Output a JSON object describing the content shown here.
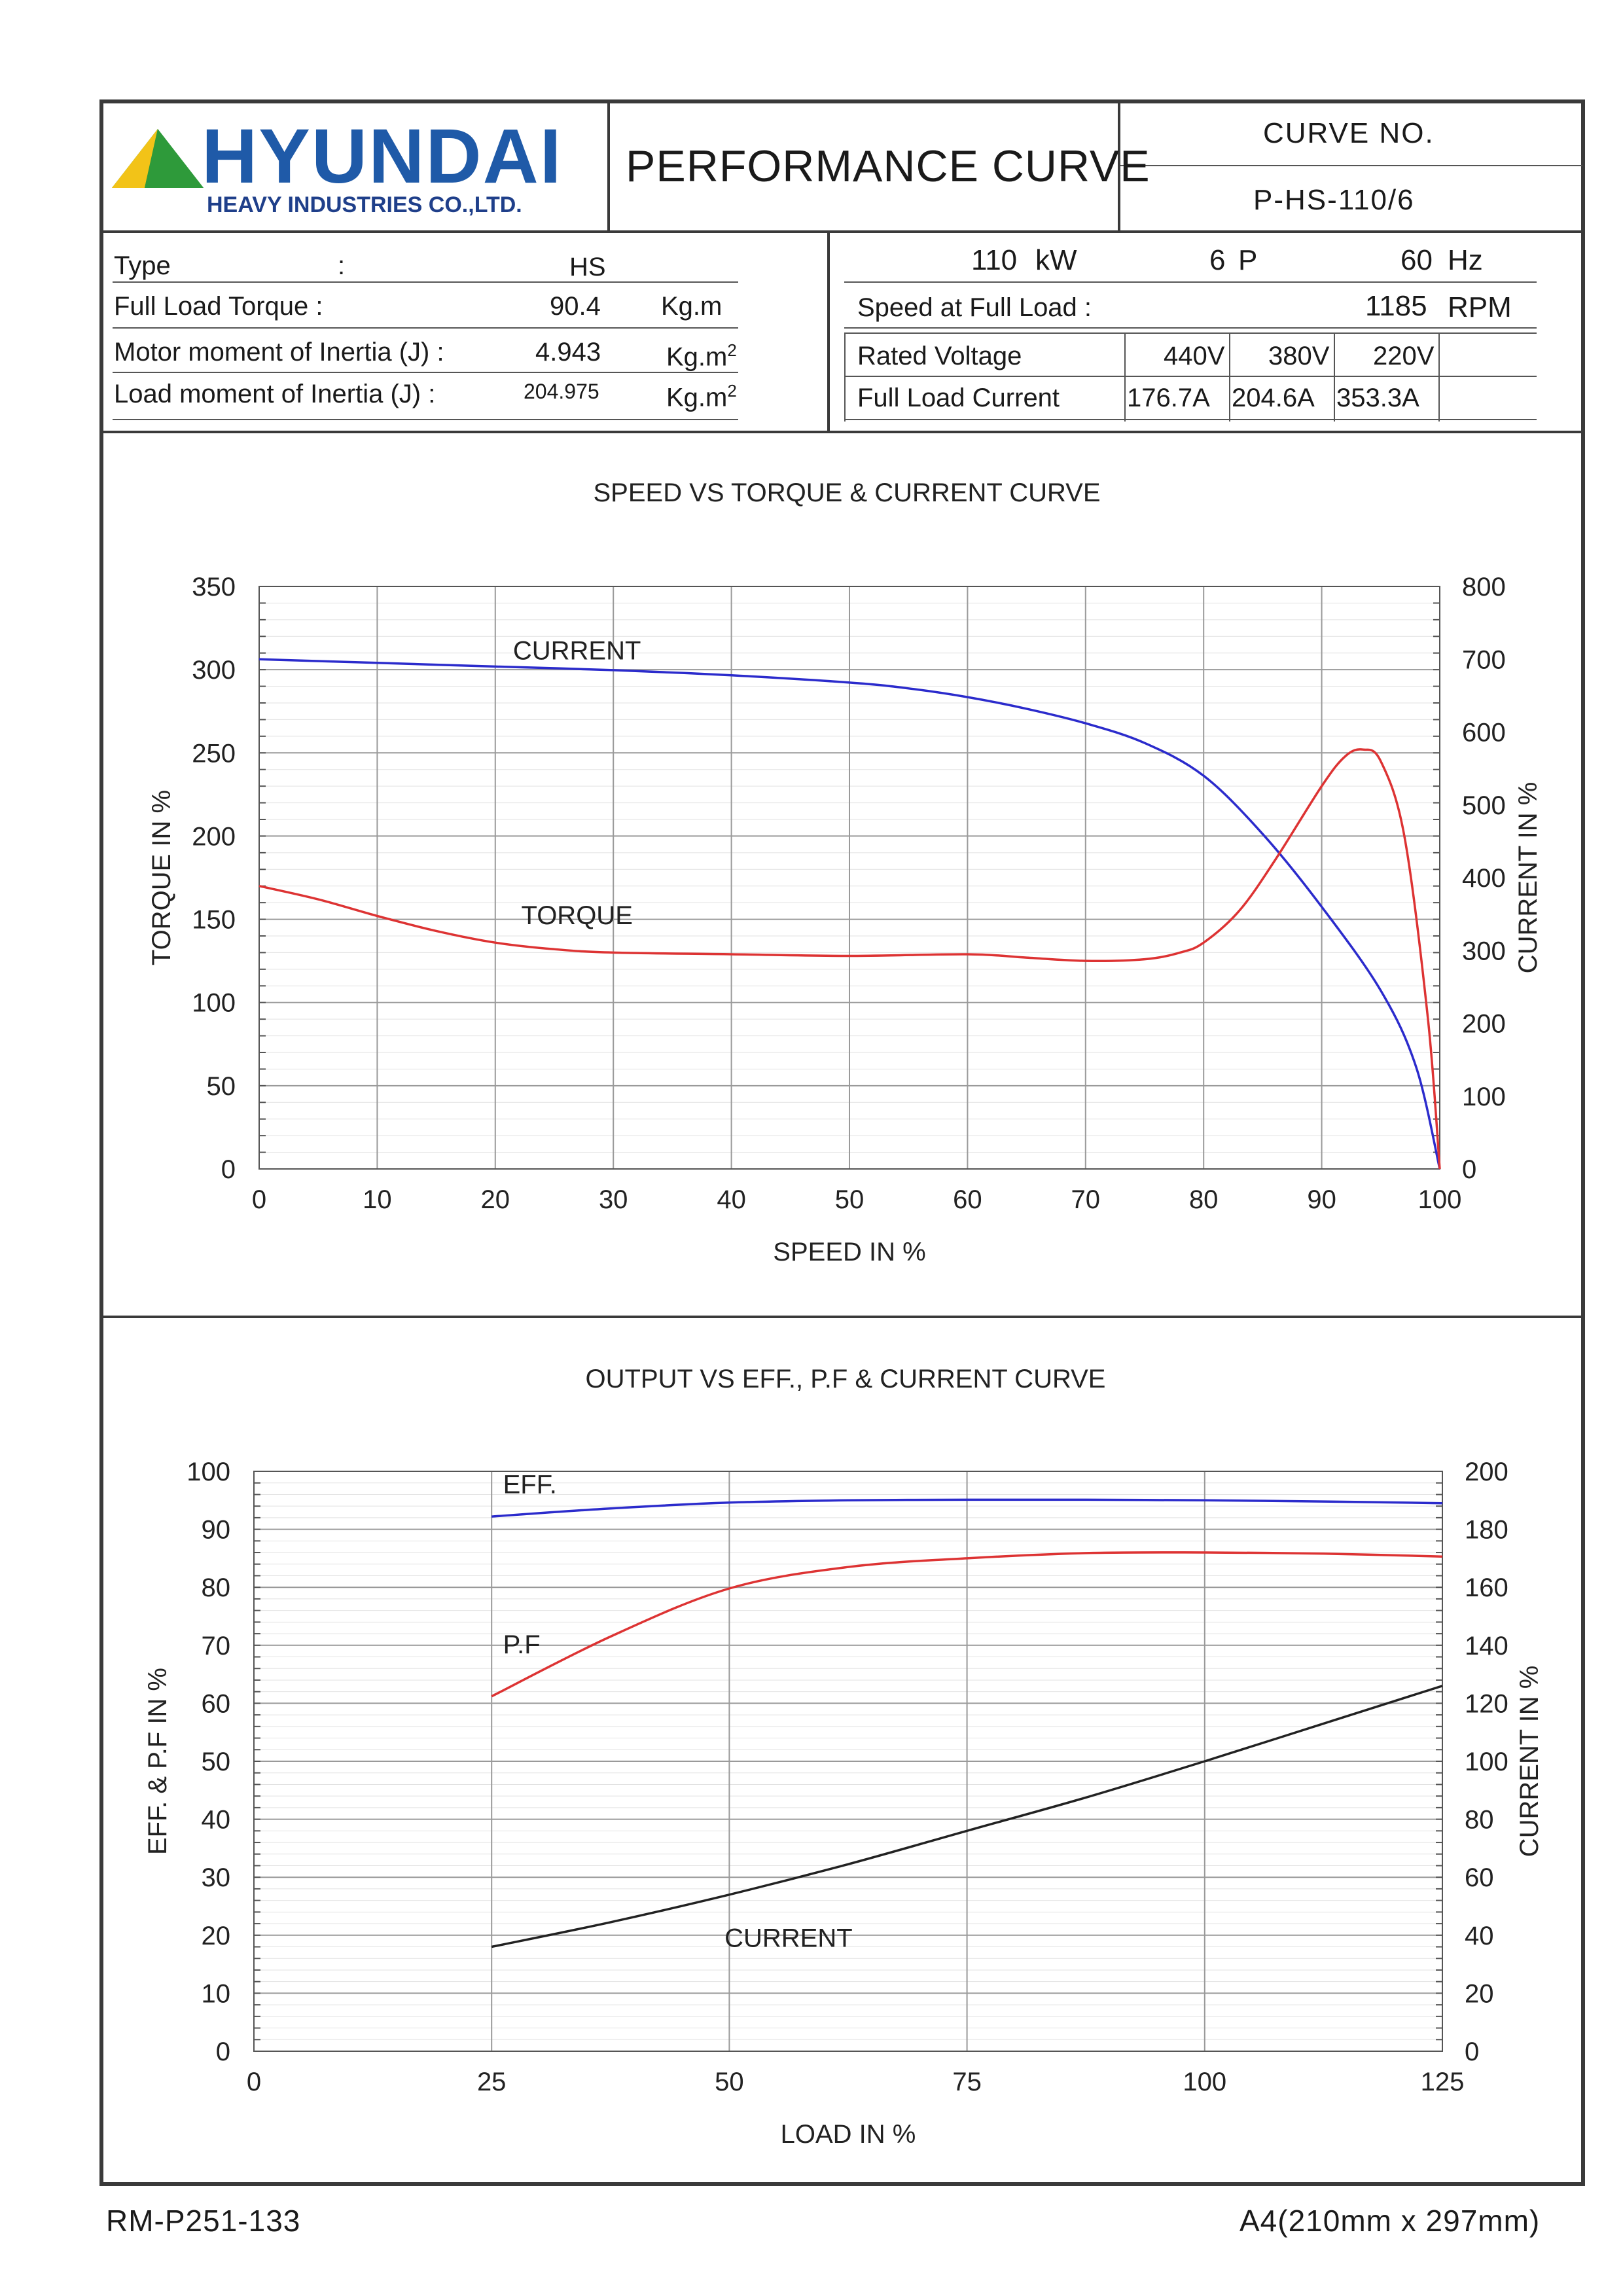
{
  "header": {
    "brand": "HYUNDAI",
    "brand_sub": "HEAVY INDUSTRIES CO.,LTD.",
    "title": "PERFORMANCE CURVE",
    "curve_no_label": "CURVE NO.",
    "curve_no": "P-HS-110/6"
  },
  "specs": {
    "type_label": "Type",
    "type_colon": ":",
    "type_value": "HS",
    "torque_label": "Full Load Torque :",
    "torque_value": "90.4",
    "torque_unit": "Kg.m",
    "motor_inertia_label": "Motor moment of Inertia (J) :",
    "motor_inertia_value": "4.943",
    "motor_inertia_unit": "Kg.m",
    "load_inertia_label": "Load moment of Inertia (J) :",
    "load_inertia_value": "204.975",
    "load_inertia_unit": "Kg.m",
    "unit_sup": "2",
    "power_value": "110",
    "power_unit": "kW",
    "poles_value": "6",
    "poles_unit": "P",
    "freq_value": "60",
    "freq_unit": "Hz",
    "speed_label": "Speed at Full Load :",
    "speed_value": "1185",
    "speed_unit": "RPM",
    "voltage_label": "Rated Voltage",
    "current_label": "Full Load Current",
    "voltages": [
      "440V",
      "380V",
      "220V"
    ],
    "currents": [
      "176.7A",
      "204.6A",
      "353.3A"
    ]
  },
  "footer": {
    "left": "RM-P251-133",
    "right": "A4(210mm x 297mm)"
  },
  "chart_data": [
    {
      "type": "line",
      "title": "SPEED VS TORQUE & CURRENT CURVE",
      "xlabel": "SPEED IN %",
      "ylabel": "TORQUE IN %",
      "y2label": "CURRENT IN %",
      "xlim": [
        0,
        100
      ],
      "ylim": [
        0,
        350
      ],
      "y2lim": [
        0,
        800
      ],
      "xticks": [
        "0",
        "10",
        "20",
        "30",
        "40",
        "50",
        "60",
        "70",
        "80",
        "90",
        "100"
      ],
      "yticks": [
        "0",
        "50",
        "100",
        "150",
        "200",
        "250",
        "300",
        "350"
      ],
      "y2ticks": [
        "0",
        "100",
        "200",
        "300",
        "400",
        "500",
        "600",
        "700",
        "800"
      ],
      "grid": true,
      "series": [
        {
          "name": "CURRENT",
          "axis": "right",
          "color": "#2b2bcc",
          "x": [
            0,
            10,
            20,
            30,
            40,
            50,
            55,
            60,
            65,
            70,
            75,
            80,
            85,
            90,
            95,
            98,
            100
          ],
          "y": [
            700,
            695,
            690,
            685,
            678,
            668,
            660,
            648,
            632,
            612,
            585,
            540,
            460,
            360,
            245,
            140,
            0
          ]
        },
        {
          "name": "TORQUE",
          "axis": "left",
          "color": "#dd3333",
          "x": [
            0,
            5,
            10,
            15,
            20,
            25,
            30,
            40,
            50,
            60,
            65,
            70,
            75,
            78,
            80,
            83,
            86,
            90,
            92,
            93.5,
            95,
            97,
            99,
            100
          ],
          "y": [
            170,
            162,
            152,
            143,
            136,
            132,
            130,
            129,
            128,
            129,
            127,
            125,
            126,
            130,
            136,
            155,
            185,
            230,
            248,
            252,
            245,
            200,
            90,
            0
          ]
        }
      ]
    },
    {
      "type": "line",
      "title": "OUTPUT VS EFF., P.F & CURRENT CURVE",
      "xlabel": "LOAD IN %",
      "ylabel": "EFF. & P.F IN %",
      "y2label": "CURRENT IN %",
      "xlim": [
        0,
        125
      ],
      "ylim": [
        0,
        100
      ],
      "y2lim": [
        0,
        200
      ],
      "xticks": [
        "0",
        "25",
        "50",
        "75",
        "100",
        "125"
      ],
      "yticks": [
        "0",
        "10",
        "20",
        "30",
        "40",
        "50",
        "60",
        "70",
        "80",
        "90",
        "100"
      ],
      "y2ticks": [
        "0",
        "20",
        "40",
        "60",
        "80",
        "100",
        "120",
        "140",
        "160",
        "180",
        "200"
      ],
      "grid": true,
      "series": [
        {
          "name": "EFF.",
          "axis": "left",
          "color": "#2b2bcc",
          "x": [
            25,
            37.5,
            50,
            62.5,
            75,
            87.5,
            100,
            112.5,
            125
          ],
          "y": [
            92.2,
            93.6,
            94.6,
            95.0,
            95.1,
            95.1,
            95.0,
            94.8,
            94.5
          ]
        },
        {
          "name": "P.F",
          "axis": "left",
          "color": "#dd3333",
          "x": [
            25,
            37.5,
            50,
            62.5,
            75,
            87.5,
            100,
            112.5,
            125
          ],
          "y": [
            61.2,
            71.5,
            79.8,
            83.5,
            85.0,
            85.9,
            86.0,
            85.8,
            85.3
          ]
        },
        {
          "name": "CURRENT",
          "axis": "right",
          "color": "#222222",
          "x": [
            25,
            37.5,
            50,
            62.5,
            75,
            87.5,
            100,
            112.5,
            125
          ],
          "y": [
            36,
            44.5,
            54,
            64.5,
            76,
            87.5,
            100,
            113,
            126
          ]
        }
      ]
    }
  ]
}
